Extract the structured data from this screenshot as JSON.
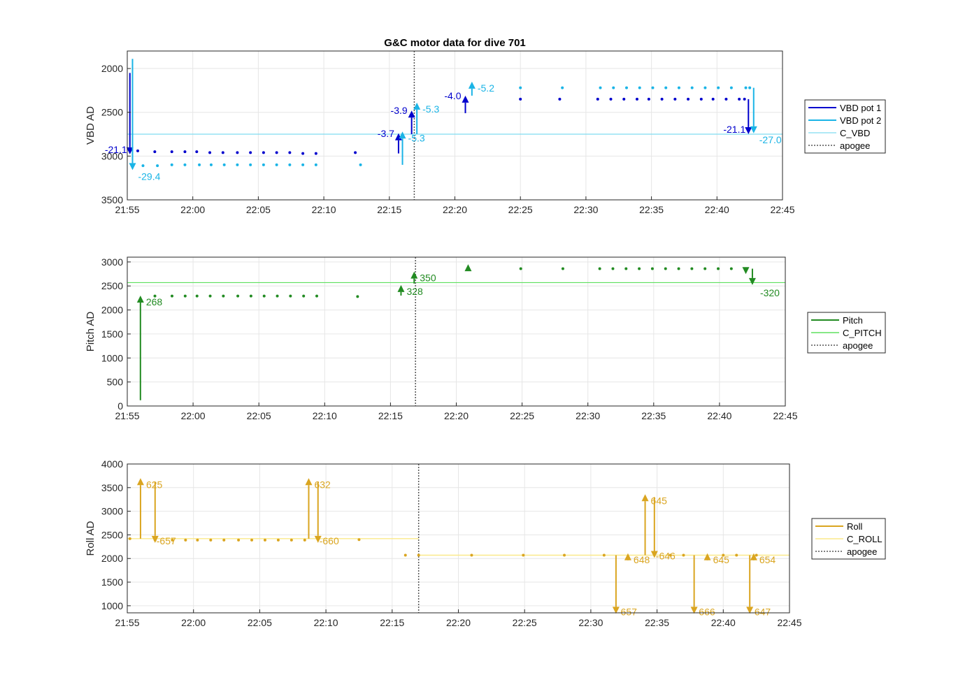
{
  "chart_data": [
    {
      "type": "scatter",
      "title": "G&C motor data for dive 701",
      "ylabel": "VBD AD",
      "xlim": [
        "21:55",
        "22:45"
      ],
      "ylim": [
        1800,
        3500
      ],
      "y_reversed": true,
      "yticks": [
        2000,
        2500,
        3000,
        3500
      ],
      "xticks": [
        "21:55",
        "22:00",
        "22:05",
        "22:10",
        "22:15",
        "22:20",
        "22:25",
        "22:30",
        "22:35",
        "22:40",
        "22:45"
      ],
      "grid": true,
      "legend": {
        "placement": "outside-right",
        "entries": [
          "VBD pot 1",
          "VBD pot 2",
          "C_VBD",
          "apogee"
        ]
      },
      "colors": {
        "pot1": "#0000cd",
        "pot2": "#1ab4e6",
        "c_line": "#7fdcf0",
        "apogee": "#555555"
      },
      "series": [
        {
          "name": "VBD pot 1",
          "x": [
            "21:55.8",
            "21:57.1",
            "21:58.4",
            "21:59.4",
            "22:00.3",
            "22:01.3",
            "22:02.3",
            "22:03.4",
            "22:04.4",
            "22:05.4",
            "22:06.4",
            "22:07.4",
            "22:08.4",
            "22:09.4",
            "22:12.4",
            "22:25.0",
            "22:28.0",
            "22:30.9",
            "22:31.9",
            "22:32.9",
            "22:33.9",
            "22:34.8",
            "22:35.8",
            "22:36.8",
            "22:37.8",
            "22:38.8",
            "22:39.7",
            "22:40.7",
            "22:41.7",
            "22:42.1"
          ],
          "y": [
            2940,
            2950,
            2950,
            2950,
            2950,
            2960,
            2960,
            2960,
            2960,
            2960,
            2960,
            2960,
            2970,
            2970,
            2960,
            2350,
            2350,
            2350,
            2350,
            2350,
            2350,
            2350,
            2350,
            2350,
            2350,
            2350,
            2350,
            2350,
            2350,
            2350
          ]
        },
        {
          "name": "VBD pot 2",
          "x": [
            "21:56.2",
            "21:57.3",
            "21:58.4",
            "21:59.4",
            "22:00.5",
            "22:01.4",
            "22:02.4",
            "22:03.4",
            "22:04.4",
            "22:05.4",
            "22:06.4",
            "22:07.4",
            "22:08.4",
            "22:09.4",
            "22:12.8",
            "22:25.0",
            "22:28.2",
            "22:31.1",
            "22:32.1",
            "22:33.1",
            "22:34.1",
            "22:35.1",
            "22:36.1",
            "22:37.1",
            "22:38.1",
            "22:39.1",
            "22:40.1",
            "22:41.1",
            "22:42.2",
            "22:42.5"
          ],
          "y": [
            3110,
            3110,
            3100,
            3100,
            3100,
            3100,
            3100,
            3100,
            3100,
            3100,
            3100,
            3100,
            3100,
            3100,
            3100,
            2220,
            2220,
            2220,
            2220,
            2220,
            2220,
            2220,
            2220,
            2220,
            2220,
            2220,
            2220,
            2220,
            2220,
            2220
          ]
        },
        {
          "name": "C_VBD",
          "y": 2750
        }
      ],
      "moves": [
        {
          "series": "pot1",
          "x": "21:55.2",
          "y0": 2050,
          "y1": 2980,
          "label": "-21.1"
        },
        {
          "series": "pot2",
          "x": "21:55.4",
          "y0": 1890,
          "y1": 3160,
          "label": "-29.4"
        },
        {
          "series": "pot1",
          "x": "22:15.7",
          "y0": 2970,
          "y1": 2740,
          "label": "-3.7"
        },
        {
          "series": "pot2",
          "x": "22:16.0",
          "y0": 3100,
          "y1": 2720,
          "label": "-5.3"
        },
        {
          "series": "pot1",
          "x": "22:16.7",
          "y0": 2750,
          "y1": 2480,
          "label": "-3.9"
        },
        {
          "series": "pot2",
          "x": "22:17.1",
          "y0": 2750,
          "y1": 2390,
          "label": "-5.3"
        },
        {
          "series": "pot1",
          "x": "22:20.8",
          "y0": 2510,
          "y1": 2310,
          "label": "-4.0"
        },
        {
          "series": "pot2",
          "x": "22:21.3",
          "y0": 2310,
          "y1": 2150,
          "label": "-5.2"
        },
        {
          "series": "pot1",
          "x": "22:42.4",
          "y0": 2350,
          "y1": 2750,
          "label": "-21.1"
        },
        {
          "series": "pot2",
          "x": "22:42.8",
          "y0": 2220,
          "y1": 2740,
          "label": "-27.0"
        }
      ],
      "apogee_x": "22:16.9"
    },
    {
      "type": "scatter",
      "ylabel": "Pitch AD",
      "xlim": [
        "21:55",
        "22:45"
      ],
      "ylim": [
        0,
        3100
      ],
      "yticks": [
        0,
        500,
        1000,
        1500,
        2000,
        2500,
        3000
      ],
      "xticks": [
        "21:55",
        "22:00",
        "22:05",
        "22:10",
        "22:15",
        "22:20",
        "22:25",
        "22:30",
        "22:35",
        "22:40",
        "22:45"
      ],
      "grid": true,
      "legend": {
        "placement": "outside-right",
        "entries": [
          "Pitch",
          "C_PITCH",
          "apogee"
        ]
      },
      "colors": {
        "pitch": "#228b22",
        "c_line": "#5ee05e",
        "apogee": "#555555"
      },
      "series": [
        {
          "name": "Pitch",
          "x": [
            "21:57.1",
            "21:58.4",
            "21:59.4",
            "22:00.3",
            "22:01.3",
            "22:02.3",
            "22:03.4",
            "22:04.4",
            "22:05.4",
            "22:06.4",
            "22:07.4",
            "22:08.4",
            "22:09.4",
            "22:12.5",
            "22:24.9",
            "22:28.1",
            "22:30.9",
            "22:31.9",
            "22:32.9",
            "22:33.9",
            "22:34.9",
            "22:35.9",
            "22:36.9",
            "22:37.9",
            "22:38.9",
            "22:39.9",
            "22:40.9"
          ],
          "y": [
            2290,
            2290,
            2290,
            2290,
            2290,
            2290,
            2290,
            2290,
            2290,
            2290,
            2290,
            2290,
            2290,
            2280,
            2860,
            2860,
            2860,
            2860,
            2860,
            2860,
            2860,
            2860,
            2860,
            2860,
            2860,
            2860,
            2860
          ]
        },
        {
          "name": "C_PITCH",
          "y": 2570
        }
      ],
      "moves": [
        {
          "x": "21:56.0",
          "y0": 120,
          "y1": 2300,
          "label": "268"
        },
        {
          "x": "22:15.8",
          "y0": 2300,
          "y1": 2520,
          "label": "328"
        },
        {
          "x": "22:16.8",
          "y0": 2550,
          "y1": 2800,
          "label": "350"
        },
        {
          "x": "22:42.5",
          "y0": 2860,
          "y1": 2520,
          "label": "-320"
        }
      ],
      "extra_markers": [
        {
          "x": "22:20.9",
          "y": 2880,
          "shape": "triangle-up"
        },
        {
          "x": "22:42.0",
          "y": 2820,
          "shape": "triangle-down"
        }
      ],
      "apogee_x": "22:16.9"
    },
    {
      "type": "scatter",
      "ylabel": "Roll AD",
      "xlim": [
        "21:55",
        "22:45"
      ],
      "ylim": [
        850,
        4000
      ],
      "yticks": [
        1000,
        1500,
        2000,
        2500,
        3000,
        3500,
        4000
      ],
      "xticks": [
        "21:55",
        "22:00",
        "22:05",
        "22:10",
        "22:15",
        "22:20",
        "22:25",
        "22:30",
        "22:35",
        "22:40",
        "22:45"
      ],
      "grid": true,
      "legend": {
        "placement": "outside-right",
        "entries": [
          "Roll",
          "C_ROLL",
          "apogee"
        ]
      },
      "colors": {
        "roll": "#daa520",
        "c_line": "#fbe98a",
        "apogee": "#555555"
      },
      "series": [
        {
          "name": "Roll",
          "x": [
            "21:55.2",
            "21:57.1",
            "21:58.4",
            "21:59.4",
            "22:00.3",
            "22:01.3",
            "22:02.3",
            "22:03.4",
            "22:04.4",
            "22:05.4",
            "22:06.4",
            "22:07.4",
            "22:08.4",
            "22:12.5",
            "22:16.0",
            "22:17.0",
            "22:21.0",
            "22:24.9",
            "22:28.0",
            "22:31.0",
            "22:36.0",
            "22:37.0",
            "22:40.0",
            "22:41.0",
            "22:42.5"
          ],
          "y": [
            2420,
            2390,
            2390,
            2390,
            2390,
            2390,
            2390,
            2390,
            2390,
            2390,
            2390,
            2390,
            2390,
            2400,
            2070,
            2070,
            2070,
            2070,
            2070,
            2070,
            2070,
            2070,
            2070,
            2070,
            2070
          ]
        },
        {
          "name": "C_ROLL",
          "segments": [
            {
              "x0": "21:55",
              "x1": "22:17.0",
              "y": 2420
            },
            {
              "x0": "22:17.0",
              "x1": "22:45",
              "y": 2070
            }
          ]
        }
      ],
      "moves": [
        {
          "x": "21:56.0",
          "y0": 2420,
          "y1": 3700,
          "label": "625"
        },
        {
          "x": "21:57.1",
          "y0": 3620,
          "y1": 2330,
          "label": "-657"
        },
        {
          "x": "22:08.7",
          "y0": 2420,
          "y1": 3700,
          "label": "632"
        },
        {
          "x": "22:09.4",
          "y0": 3630,
          "y1": 2330,
          "label": "-660"
        },
        {
          "x": "22:31.9",
          "y0": 2070,
          "y1": 830,
          "label": "-657"
        },
        {
          "x": "22:32.8",
          "y0": 2070,
          "y1": 2110,
          "label": "648"
        },
        {
          "x": "22:34.1",
          "y0": 2070,
          "y1": 3360,
          "label": "645"
        },
        {
          "x": "22:34.8",
          "y0": 3300,
          "y1": 2010,
          "label": "-646"
        },
        {
          "x": "22:37.8",
          "y0": 2070,
          "y1": 830,
          "label": "-666"
        },
        {
          "x": "22:38.8",
          "y0": 2070,
          "y1": 2110,
          "label": "645"
        },
        {
          "x": "22:42.0",
          "y0": 2070,
          "y1": 830,
          "label": "-647"
        },
        {
          "x": "22:42.3",
          "y0": 2070,
          "y1": 2110,
          "label": "654"
        }
      ],
      "apogee_x": "22:17.0"
    }
  ]
}
